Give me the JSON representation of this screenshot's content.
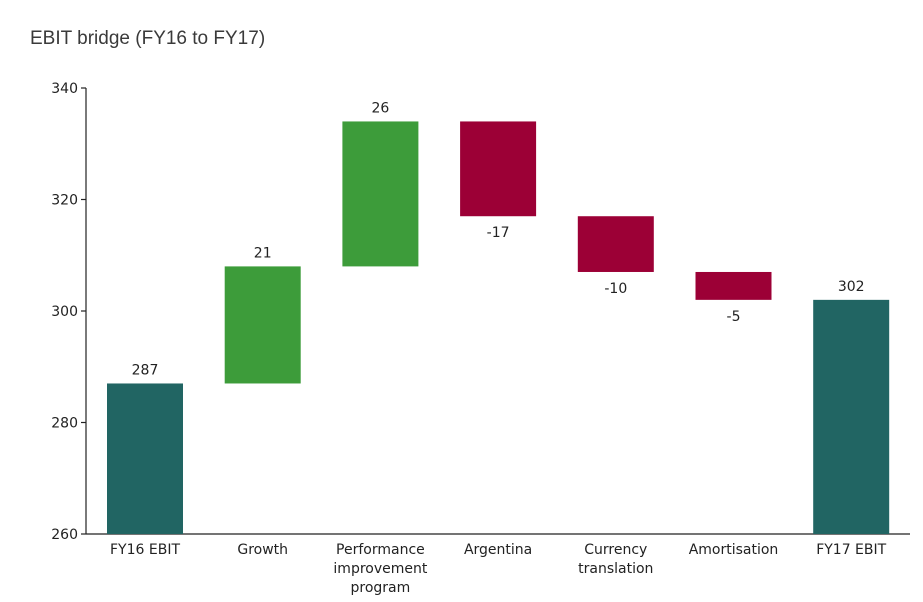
{
  "chart_data": {
    "type": "bar",
    "subtype": "waterfall",
    "title": "EBIT bridge (FY16 to FY17)",
    "xlabel": "",
    "ylabel": "",
    "ylim": [
      260,
      340
    ],
    "yticks": [
      260,
      280,
      300,
      320,
      340
    ],
    "grid": false,
    "categories": [
      [
        "FY16 EBIT"
      ],
      [
        "Growth"
      ],
      [
        "Performance",
        "improvement",
        "program"
      ],
      [
        "Argentina"
      ],
      [
        "Currency",
        "translation"
      ],
      [
        "Amortisation"
      ],
      [
        "FY17 EBIT"
      ]
    ],
    "bars": [
      {
        "kind": "total",
        "start": 260,
        "end": 287,
        "label": "287"
      },
      {
        "kind": "increase",
        "start": 287,
        "end": 308,
        "label": "21"
      },
      {
        "kind": "increase",
        "start": 308,
        "end": 334,
        "label": "26"
      },
      {
        "kind": "decrease",
        "start": 334,
        "end": 317,
        "label": "-17"
      },
      {
        "kind": "decrease",
        "start": 317,
        "end": 307,
        "label": "-10"
      },
      {
        "kind": "decrease",
        "start": 307,
        "end": 302,
        "label": "-5"
      },
      {
        "kind": "total",
        "start": 260,
        "end": 302,
        "label": "302"
      }
    ],
    "colors": {
      "total": "#216563",
      "increase": "#3d9c3a",
      "decrease": "#9c0036"
    }
  }
}
